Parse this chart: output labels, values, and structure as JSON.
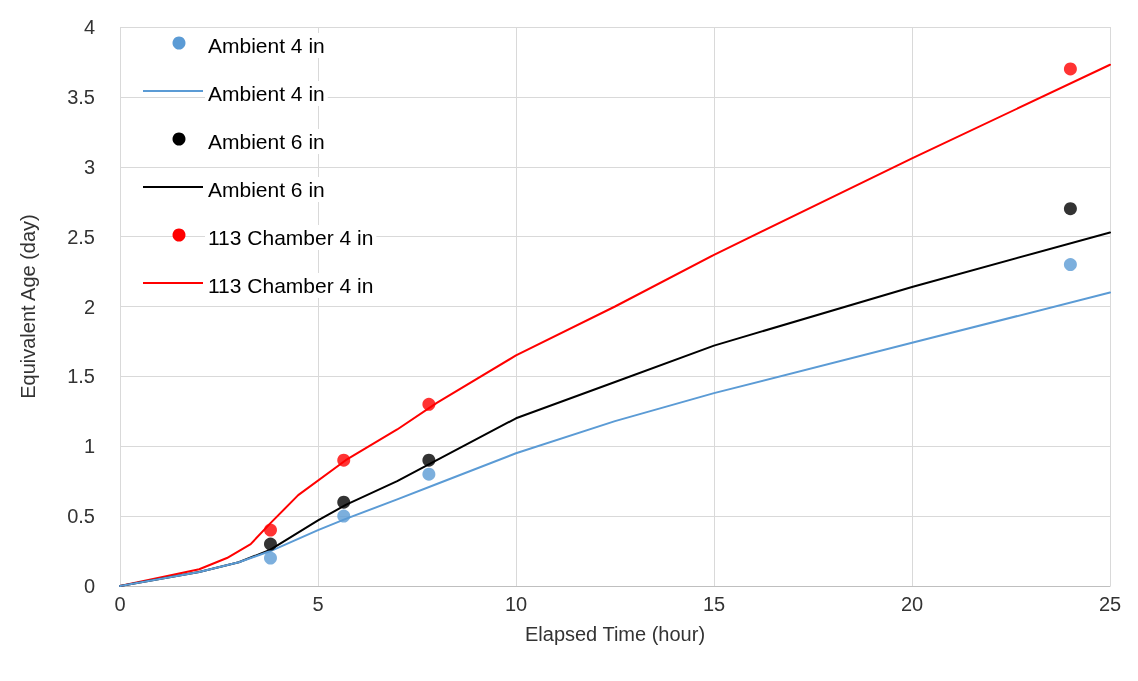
{
  "chart_data": {
    "type": "scatter",
    "xlabel": "Elapsed Time (hour)",
    "ylabel": "Equivalent Age (day)",
    "xlim": [
      0,
      25
    ],
    "xticks": [
      0,
      5,
      10,
      15,
      20,
      25
    ],
    "ylim": [
      0,
      4
    ],
    "yticks": [
      0,
      0.5,
      1,
      1.5,
      2,
      2.5,
      3,
      3.5,
      4
    ],
    "grid": true,
    "legend": "top left",
    "series": [
      {
        "name": "Ambient 4 in",
        "marker": "circle",
        "color": "#5b9bd5",
        "x": [
          3.8,
          5.65,
          7.8,
          24
        ],
        "values": [
          0.2,
          0.5,
          0.8,
          2.3
        ]
      },
      {
        "name": "Ambient 4 in",
        "type": "line",
        "marker": "none",
        "color": "#5b9bd5",
        "x": [
          0,
          1,
          2,
          3,
          3.8,
          5,
          5.7,
          7,
          8,
          10,
          12.5,
          15,
          20,
          25
        ],
        "values": [
          0,
          0.05,
          0.1,
          0.17,
          0.25,
          0.4,
          0.48,
          0.62,
          0.73,
          0.95,
          1.18,
          1.38,
          1.74,
          2.1
        ]
      },
      {
        "name": "Ambient 6 in",
        "marker": "circle",
        "color": "#000000",
        "x": [
          3.8,
          5.65,
          7.8,
          24
        ],
        "values": [
          0.3,
          0.6,
          0.9,
          2.7
        ]
      },
      {
        "name": "Ambient 6 in",
        "type": "line",
        "marker": "none",
        "color": "#000000",
        "x": [
          0,
          2,
          3,
          3.8,
          5,
          5.7,
          7,
          8,
          10,
          12.5,
          15,
          20,
          25
        ],
        "values": [
          0,
          0.1,
          0.17,
          0.26,
          0.47,
          0.58,
          0.75,
          0.9,
          1.2,
          1.46,
          1.72,
          2.14,
          2.53
        ]
      },
      {
        "name": "113 Chamber 4 in",
        "marker": "circle",
        "color": "#ff0000",
        "x": [
          3.8,
          5.65,
          7.8,
          24
        ],
        "values": [
          0.4,
          0.9,
          1.3,
          3.7
        ]
      },
      {
        "name": "113 Chamber 4 in",
        "type": "line",
        "marker": "none",
        "color": "#ff0000",
        "x": [
          0,
          2,
          2.7,
          3.3,
          3.8,
          4.5,
          5.7,
          7,
          8,
          10,
          12.5,
          15,
          20,
          25
        ],
        "values": [
          0,
          0.12,
          0.2,
          0.3,
          0.45,
          0.65,
          0.9,
          1.12,
          1.31,
          1.65,
          2.0,
          2.37,
          3.06,
          3.73
        ]
      }
    ]
  }
}
